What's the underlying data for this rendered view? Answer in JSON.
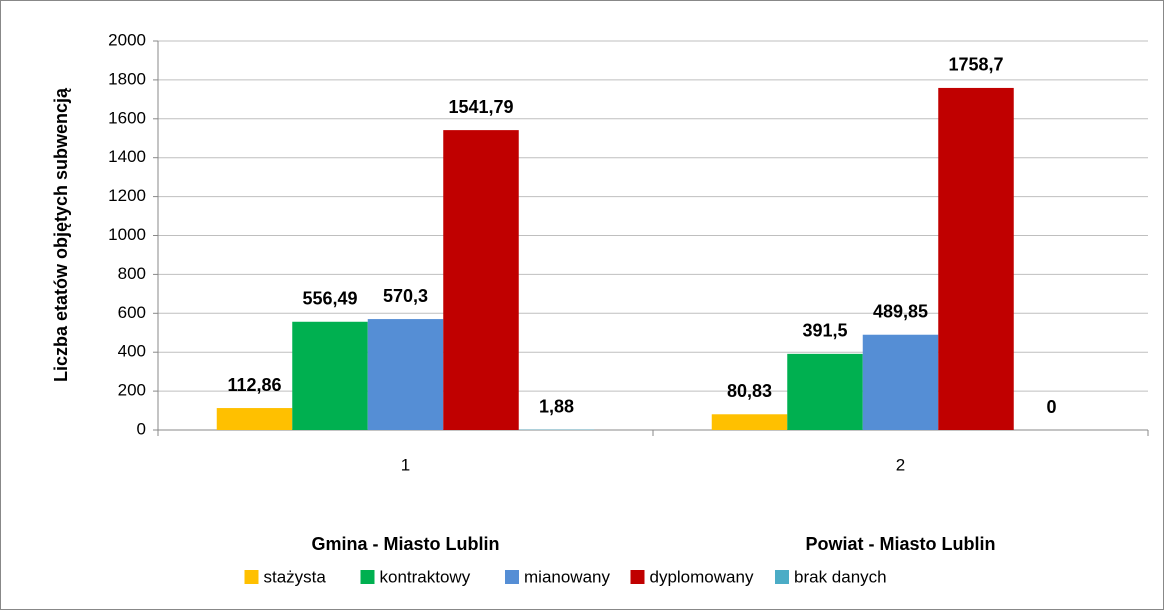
{
  "chart_data": {
    "type": "bar",
    "y_label": "Liczba etatów objętych subwencją",
    "categories": [
      "1",
      "2"
    ],
    "group_labels": [
      "Gmina - Miasto Lublin",
      "Powiat - Miasto Lublin"
    ],
    "series": [
      {
        "name": "stażysta",
        "color": "#ffc000",
        "values": [
          112.86,
          80.83
        ],
        "value_labels": [
          "112,86",
          "80,83"
        ]
      },
      {
        "name": "kontraktowy",
        "color": "#00b050",
        "values": [
          556.49,
          391.5
        ],
        "value_labels": [
          "556,49",
          "391,5"
        ]
      },
      {
        "name": "mianowany",
        "color": "#558ed5",
        "values": [
          570.3,
          489.85
        ],
        "value_labels": [
          "570,3",
          "489,85"
        ]
      },
      {
        "name": "dyplomowany",
        "color": "#c00000",
        "values": [
          1541.79,
          1758.7
        ],
        "value_labels": [
          "1541,79",
          "1758,7"
        ]
      },
      {
        "name": "brak danych",
        "color": "#4bacc6",
        "values": [
          1.88,
          0
        ],
        "value_labels": [
          "1,88",
          "0"
        ]
      }
    ],
    "ylim": [
      0,
      2000
    ],
    "yticks": [
      0,
      200,
      400,
      600,
      800,
      1000,
      1200,
      1400,
      1600,
      1800,
      2000
    ],
    "grid": true,
    "legend": "bottom"
  }
}
